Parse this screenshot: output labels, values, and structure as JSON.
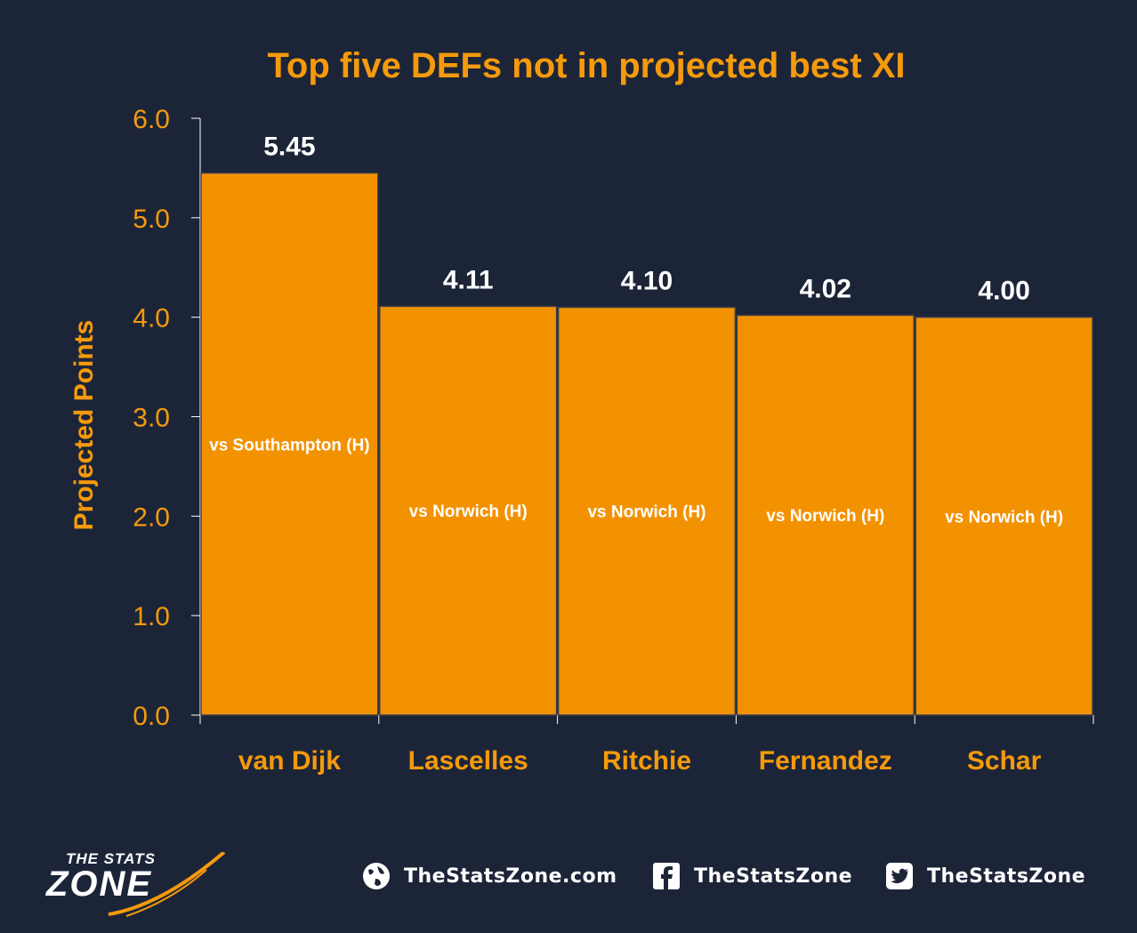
{
  "colors": {
    "background": "#1c2538",
    "accent": "#f59a0c",
    "bar_fill": "#f39200",
    "bar_edge": "#3a3f4a",
    "text_light": "#ffffff"
  },
  "chart_data": {
    "type": "bar",
    "title": "Top five DEFs not in projected best XI",
    "xlabel": "",
    "ylabel": "Projected Points",
    "ylim": [
      0,
      6
    ],
    "yticks": [
      "0.0",
      "1.0",
      "2.0",
      "3.0",
      "4.0",
      "5.0",
      "6.0"
    ],
    "categories": [
      "van Dijk",
      "Lascelles",
      "Ritchie",
      "Fernandez",
      "Schar"
    ],
    "values": [
      5.45,
      4.11,
      4.1,
      4.02,
      4.0
    ],
    "value_labels": [
      "5.45",
      "4.11",
      "4.10",
      "4.02",
      "4.00"
    ],
    "bar_annotations": [
      "vs Southampton (H)",
      "vs Norwich (H)",
      "vs Norwich (H)",
      "vs Norwich (H)",
      "vs Norwich (H)"
    ],
    "grid": false,
    "legend": "none"
  },
  "footer": {
    "logo_top": "THE STATS",
    "logo_main": "ZONE",
    "website": "TheStatsZone.com",
    "facebook": "TheStatsZone",
    "twitter": "TheStatsZone",
    "icons": [
      "globe-icon",
      "facebook-icon",
      "twitter-icon"
    ]
  }
}
